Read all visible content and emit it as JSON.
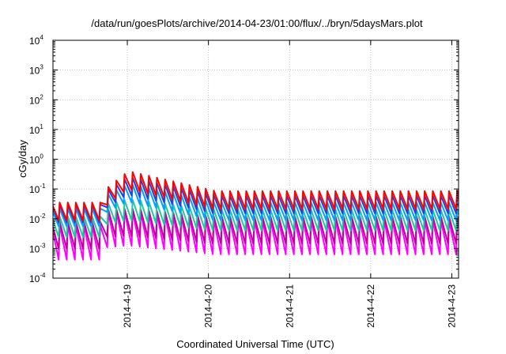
{
  "chart_data": {
    "type": "line",
    "title": "/data/run/goesPlots/archive/2014-04-23/01:00/flux/../bryn/5daysMars.plot",
    "xlabel": "Coordinated Universal Time (UTC)",
    "ylabel": "cGy/day",
    "yscale": "log",
    "ylim": [
      0.0001,
      10000
    ],
    "xlim": [
      "2014-04-18 02:00",
      "2014-04-23 02:00"
    ],
    "grid": true,
    "x_ticks": [
      "2014-4-19",
      "2014-4-20",
      "2014-4-21",
      "2014-4-22",
      "2014-4-23"
    ],
    "y_ticks": [
      {
        "base": "10",
        "exp": "-4",
        "value": 0.0001
      },
      {
        "base": "10",
        "exp": "-3",
        "value": 0.001
      },
      {
        "base": "10",
        "exp": "-2",
        "value": 0.01
      },
      {
        "base": "10",
        "exp": "-1",
        "value": 0.1
      },
      {
        "base": "10",
        "exp": "0",
        "value": 1
      },
      {
        "base": "10",
        "exp": "1",
        "value": 10
      },
      {
        "base": "10",
        "exp": "2",
        "value": 100
      },
      {
        "base": "10",
        "exp": "3",
        "value": 1000
      },
      {
        "base": "10",
        "exp": "4",
        "value": 10000
      }
    ],
    "sawtooth_period_hours": 2.4,
    "series": [
      {
        "color": "#ff0000",
        "peak_before": 0.035,
        "peak_event": 0.4,
        "peak_after": 0.085,
        "trough_ratio": 0.25
      },
      {
        "color": "#2040e0",
        "peak_before": 0.03,
        "peak_event": 0.26,
        "peak_after": 0.06,
        "trough_ratio": 0.25
      },
      {
        "color": "#00a0ff",
        "peak_before": 0.022,
        "peak_event": 0.15,
        "peak_after": 0.035,
        "trough_ratio": 0.25
      },
      {
        "color": "#20c8a0",
        "peak_before": 0.012,
        "peak_event": 0.045,
        "peak_after": 0.02,
        "trough_ratio": 0.2
      },
      {
        "color": "#c000a0",
        "peak_before": 0.008,
        "peak_event": 0.022,
        "peak_after": 0.012,
        "trough_ratio": 0.12
      },
      {
        "color": "#ff00ff",
        "peak_before": 0.006,
        "peak_event": 0.018,
        "peak_after": 0.009,
        "trough_ratio": 0.07
      }
    ],
    "event_onset": "2014-04-18 16:40",
    "event_peak": "2014-04-19 00:00",
    "event_decay": "2014-04-20 02:00"
  }
}
